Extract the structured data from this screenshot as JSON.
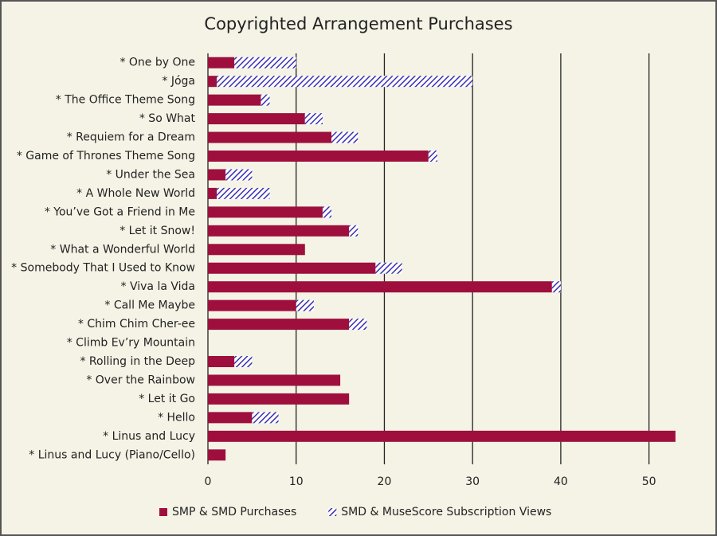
{
  "chart_data": {
    "type": "bar",
    "orientation": "horizontal",
    "stacked": true,
    "title": "Copyrighted Arrangement Purchases",
    "categories": [
      "* One by One",
      "* Jóga",
      "* The Office Theme Song",
      "* So What",
      "* Requiem for a Dream",
      "* Game of Thrones Theme Song",
      "* Under the Sea",
      "* A Whole New World",
      "* You’ve Got a Friend in Me",
      "* Let it Snow!",
      "* What a Wonderful World",
      "* Somebody That I Used to Know",
      "* Viva la Vida",
      "* Call Me Maybe",
      "* Chim Chim Cher-ee",
      "* Climb Ev’ry Mountain",
      "* Rolling in the Deep",
      "* Over the Rainbow",
      "* Let it Go",
      "* Hello",
      "* Linus and Lucy",
      "* Linus and Lucy (Piano/Cello)"
    ],
    "series": [
      {
        "name": "SMP & SMD Purchases",
        "color": "#9e0f3d",
        "fill": "solid",
        "values": [
          3,
          1,
          6,
          11,
          14,
          25,
          2,
          1,
          13,
          16,
          11,
          19,
          39,
          10,
          16,
          0,
          3,
          15,
          16,
          5,
          53,
          2
        ]
      },
      {
        "name": "SMD & MuseScore Subscription Views",
        "color": "#3a2fb5",
        "fill": "hatch",
        "values": [
          7,
          29,
          1,
          2,
          3,
          1,
          3,
          6,
          1,
          1,
          0,
          3,
          1,
          2,
          2,
          0,
          2,
          0,
          0,
          3,
          0,
          0
        ]
      }
    ],
    "xlim": [
      0,
      55
    ],
    "xticks": [
      0,
      10,
      20,
      30,
      40,
      50
    ],
    "grid": true,
    "legend": "bottom"
  }
}
